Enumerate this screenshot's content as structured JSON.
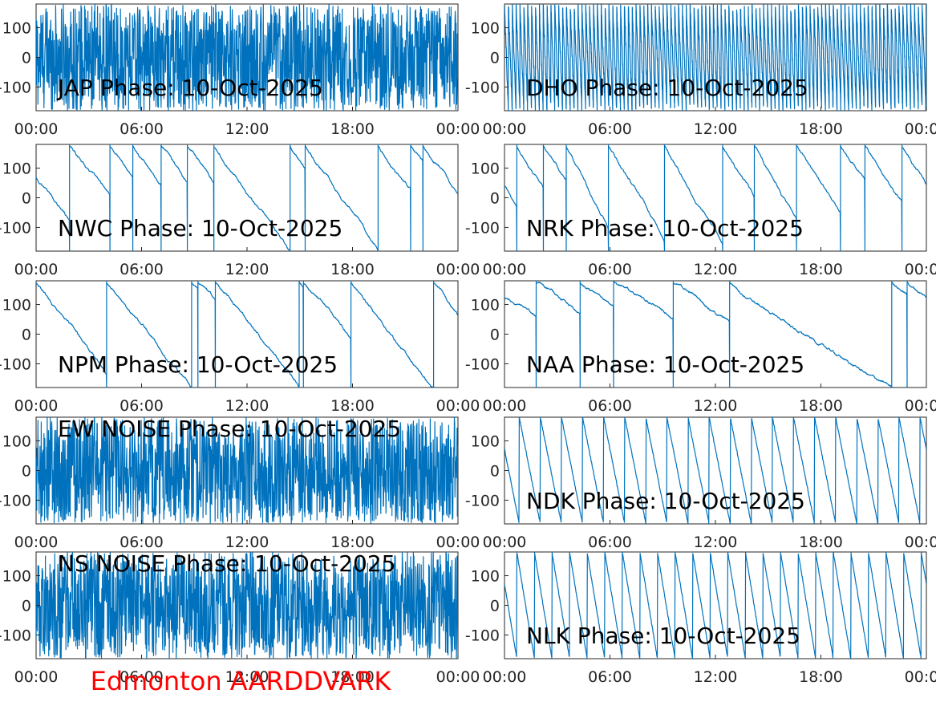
{
  "figure": {
    "station_label": "Edmonton AARDDVARK",
    "station_color": "#ff0000",
    "trace_color": "#0072bd"
  },
  "chart_data": [
    {
      "type": "line",
      "title": "JAP Phase: 10-Oct-2025",
      "pattern": "noise",
      "x_ticks": [
        "00:00",
        "06:00",
        "12:00",
        "18:00",
        "00:00"
      ],
      "y_ticks": [
        "100",
        "0",
        "-100"
      ],
      "xlim": [
        0,
        24
      ],
      "ylim": [
        -180,
        180
      ]
    },
    {
      "type": "line",
      "title": "DHO Phase: 10-Oct-2025",
      "pattern": "fastwrap",
      "x_ticks": [
        "00:00",
        "06:00",
        "12:00",
        "18:00",
        "00:00"
      ],
      "y_ticks": [
        "100",
        "0",
        "-100"
      ],
      "xlim": [
        0,
        24
      ],
      "ylim": [
        -180,
        180
      ]
    },
    {
      "type": "line",
      "title": "NWC Phase: 10-Oct-2025",
      "pattern": "wrap",
      "x_ticks": [
        "00:00",
        "06:00",
        "12:00",
        "18:00",
        "00:00"
      ],
      "y_ticks": [
        "100",
        "0",
        "-100"
      ],
      "xlim": [
        0,
        24
      ],
      "ylim": [
        -180,
        180
      ],
      "wraps": [
        1.9,
        4.2,
        5.5,
        7.1,
        8.6,
        10.1,
        15.3,
        21.3,
        22.0
      ],
      "start_value": 70,
      "drift_per_hour": -80
    },
    {
      "type": "line",
      "title": "NRK Phase: 10-Oct-2025",
      "pattern": "wrap",
      "x_ticks": [
        "00:00",
        "06:00",
        "12:00",
        "18:00",
        "00:00"
      ],
      "y_ticks": [
        "100",
        "0",
        "-100"
      ],
      "xlim": [
        0,
        24
      ],
      "ylim": [
        -180,
        180
      ],
      "wraps": [
        0.7,
        2.2,
        3.5,
        5.9,
        9.1,
        12.4,
        14.2,
        16.6,
        19.1,
        20.5,
        22.6
      ],
      "start_value": 40,
      "drift_per_hour": -95
    },
    {
      "type": "line",
      "title": "NPM Phase: 10-Oct-2025",
      "pattern": "wrap",
      "x_ticks": [
        "00:00",
        "06:00",
        "12:00",
        "18:00",
        "00:00"
      ],
      "y_ticks": [
        "100",
        "0",
        "-100"
      ],
      "xlim": [
        0,
        24
      ],
      "ylim": [
        -180,
        180
      ],
      "wraps": [
        4.0,
        9.2,
        10.2,
        15.2,
        17.9
      ],
      "start_value": 175,
      "drift_per_hour": -75
    },
    {
      "type": "line",
      "title": "NAA Phase: 10-Oct-2025",
      "pattern": "wrap",
      "x_ticks": [
        "00:00",
        "06:00",
        "12:00",
        "18:00",
        "00:00"
      ],
      "y_ticks": [
        "100",
        "0",
        "-100"
      ],
      "xlim": [
        0,
        24
      ],
      "ylim": [
        -180,
        180
      ],
      "wraps": [
        1.8,
        4.3,
        6.2,
        9.6,
        12.8,
        22.9
      ],
      "start_value": 120,
      "drift_per_hour": -40
    },
    {
      "type": "line",
      "title": "EW NOISE Phase: 10-Oct-2025",
      "pattern": "noise",
      "x_ticks": [
        "00:00",
        "06:00",
        "12:00",
        "18:00",
        "00:00"
      ],
      "y_ticks": [
        "100",
        "0",
        "-100"
      ],
      "xlim": [
        0,
        24
      ],
      "ylim": [
        -180,
        180
      ]
    },
    {
      "type": "line",
      "title": "NDK Phase: 10-Oct-2025",
      "pattern": "sawtooth",
      "x_ticks": [
        "00:00",
        "06:00",
        "12:00",
        "18:00",
        "00:00"
      ],
      "y_ticks": [
        "100",
        "0",
        "-100"
      ],
      "xlim": [
        0,
        24
      ],
      "ylim": [
        -180,
        180
      ],
      "period_hours": 1.2
    },
    {
      "type": "line",
      "title": "NS NOISE Phase: 10-Oct-2025",
      "pattern": "noise",
      "x_ticks": [
        "00:00",
        "06:00",
        "12:00",
        "18:00",
        "00:00"
      ],
      "y_ticks": [
        "100",
        "0",
        "-100"
      ],
      "xlim": [
        0,
        24
      ],
      "ylim": [
        -180,
        180
      ]
    },
    {
      "type": "line",
      "title": "NLK Phase: 10-Oct-2025",
      "pattern": "sawtooth",
      "x_ticks": [
        "00:00",
        "06:00",
        "12:00",
        "18:00",
        "00:00"
      ],
      "y_ticks": [
        "100",
        "0",
        "-100"
      ],
      "xlim": [
        0,
        24
      ],
      "ylim": [
        -180,
        180
      ],
      "period_hours": 1.0
    }
  ]
}
